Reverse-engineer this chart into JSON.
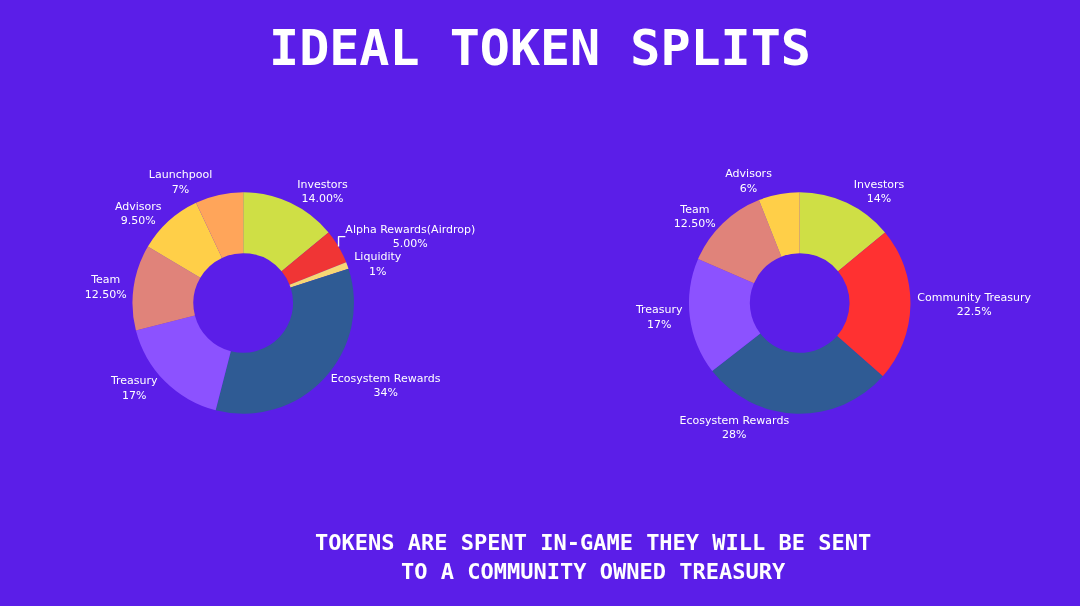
{
  "chart_data": [
    {
      "type": "donut",
      "title": "IDEAL TOKEN SPLITS",
      "annotations": [
        "TOKENS ARE SPENT IN-GAME THEY WILL BE SENT\nTO A COMMUNITY OWNED TREASURY"
      ],
      "categories": [
        "Investors",
        "Alpha Rewards(Airdrop)",
        "Liquidity",
        "Ecosystem Rewards",
        "Treasury",
        "Team",
        "Advisors",
        "Launchpool"
      ],
      "values": [
        14,
        5,
        1,
        34,
        17,
        12.5,
        9.5,
        7
      ],
      "value_labels": [
        "14.00%",
        "5.00%",
        "1%",
        "34%",
        "17%",
        "12.50%",
        "9.50%",
        "7%"
      ],
      "colors": [
        "#cfdf45",
        "#f03535",
        "#f7d774",
        "#2f5b94",
        "#8c52ff",
        "#e0837a",
        "#ffcf48",
        "#ffa55a"
      ]
    },
    {
      "type": "donut",
      "categories": [
        "Investors",
        "Community Treasury",
        "Ecosystem Rewards",
        "Treasury",
        "Team",
        "Advisors"
      ],
      "values": [
        14,
        22.5,
        28,
        17,
        12.5,
        6
      ],
      "value_labels": [
        "14%",
        "22.5%",
        "28%",
        "17%",
        "12.50%",
        "6%"
      ],
      "colors": [
        "#cfdf45",
        "#ff3131",
        "#2f5b94",
        "#8c52ff",
        "#e0837a",
        "#ffcf48"
      ]
    }
  ]
}
